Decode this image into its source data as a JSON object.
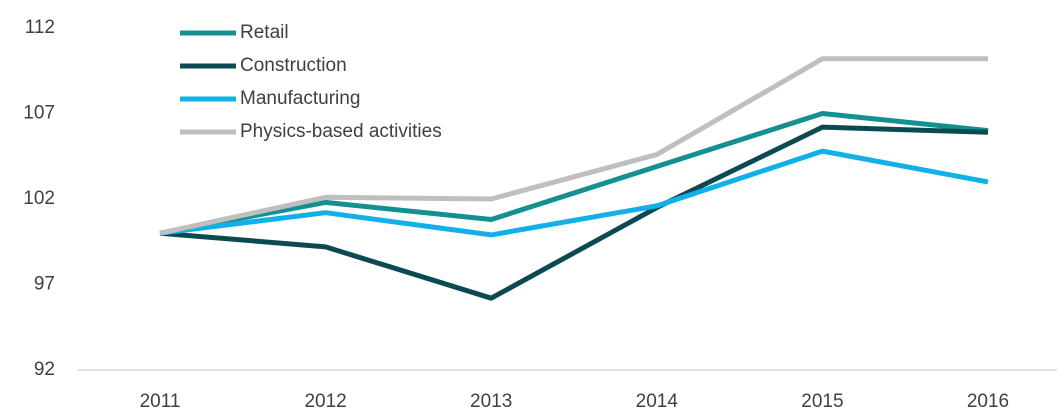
{
  "chart_data": {
    "type": "line",
    "categories": [
      "2011",
      "2012",
      "2013",
      "2014",
      "2015",
      "2016"
    ],
    "series": [
      {
        "name": "Retail",
        "color": "#13908f",
        "values": [
          100,
          101.8,
          100.8,
          103.9,
          107,
          106
        ]
      },
      {
        "name": "Construction",
        "color": "#0c4a52",
        "values": [
          100,
          99.2,
          96.2,
          101.5,
          106.2,
          105.9
        ]
      },
      {
        "name": "Manufacturing",
        "color": "#12b0e8",
        "values": [
          100,
          101.2,
          99.9,
          101.6,
          104.8,
          103
        ]
      },
      {
        "name": "Physics-based activities",
        "color": "#bfbfbf",
        "values": [
          100,
          102.1,
          102,
          104.6,
          110.2,
          110.2
        ]
      }
    ],
    "ylim": [
      92,
      112
    ],
    "yticks": [
      92,
      97,
      102,
      107,
      112
    ],
    "grid": false,
    "legend": "top-left"
  }
}
